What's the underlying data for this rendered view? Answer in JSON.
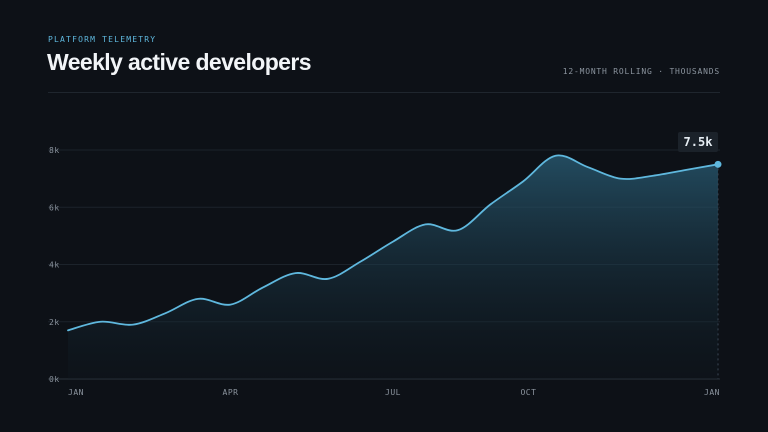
{
  "header": {
    "eyebrow": "PLATFORM TELEMETRY",
    "title": "Weekly active developers",
    "subtitle": "12-MONTH ROLLING · THOUSANDS"
  },
  "colors": {
    "background": "#0d1117",
    "line": "#5fb8de",
    "grid": "#1c232b",
    "axis_text": "#8b949e"
  },
  "chart_data": {
    "type": "area",
    "title": "Weekly active developers",
    "subtitle": "12-MONTH ROLLING · THOUSANDS",
    "x_ticks": [
      "JAN",
      "APR",
      "JUL",
      "OCT",
      "JAN"
    ],
    "x_tick_positions": [
      0,
      3,
      6,
      8.5,
      12
    ],
    "y_ticks": [
      "0k",
      "2k",
      "4k",
      "6k",
      "8k"
    ],
    "y_tick_values": [
      0,
      2,
      4,
      6,
      8
    ],
    "ylim": [
      0,
      8
    ],
    "xlim": [
      0,
      12
    ],
    "grid": true,
    "series": [
      {
        "x": [
          0,
          0.6,
          1.2,
          1.8,
          2.4,
          3.0,
          3.6,
          4.2,
          4.8,
          5.4,
          6.0,
          6.6,
          7.2,
          7.8,
          8.4,
          9.0,
          9.6,
          10.2,
          10.8,
          11.4,
          12
        ],
        "values": [
          1.7,
          2.0,
          1.9,
          2.3,
          2.8,
          2.6,
          3.2,
          3.7,
          3.5,
          4.1,
          4.8,
          5.4,
          5.2,
          6.1,
          6.9,
          7.8,
          7.4,
          7.0,
          7.1,
          7.3,
          7.5
        ]
      }
    ],
    "annotations": [
      {
        "x": 12,
        "y": 7.5,
        "label": "7.5k"
      }
    ]
  }
}
